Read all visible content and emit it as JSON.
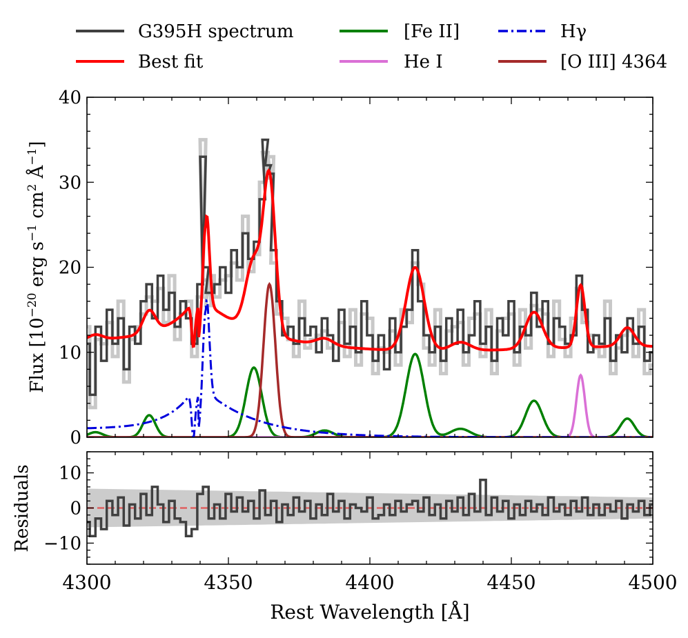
{
  "chart_data": [
    {
      "type": "line",
      "panel": "spectrum",
      "xlabel": "Rest Wavelength [Å]",
      "ylabel": "Flux [10^-20 erg s^-1 cm^2 Å^-1]",
      "ylabel_parts": [
        "Flux [10",
        "−20",
        " erg s",
        "−1",
        " cm",
        "2",
        " Å",
        "−1",
        "]"
      ],
      "xlim": [
        4300,
        4500
      ],
      "ylim": [
        0,
        40
      ],
      "xticks": [
        4300,
        4350,
        4400,
        4450,
        4500
      ],
      "xtick_labels": [
        "4300",
        "4350",
        "4400",
        "4450",
        "4500"
      ],
      "yticks": [
        0,
        10,
        20,
        30,
        40
      ],
      "ytick_labels": [
        "0",
        "10",
        "20",
        "30",
        "40"
      ],
      "legend_position": "top, above plot",
      "legend": [
        {
          "label": "G395H spectrum",
          "color": "#404040",
          "style": "solid"
        },
        {
          "label": "[Fe II]",
          "color": "#008000",
          "style": "solid"
        },
        {
          "label": "Hγ",
          "color": "#0000dd",
          "style": "dashdot"
        },
        {
          "label": "Best fit",
          "color": "#ff0000",
          "style": "solid"
        },
        {
          "label": "He I",
          "color": "#da70d6",
          "style": "solid"
        },
        {
          "label": "[O III] 4364",
          "color": "#a52a2a",
          "style": "solid"
        }
      ],
      "series": [
        {
          "name": "G395H spectrum",
          "color": "#404040",
          "style": "steps",
          "x": [
            4300,
            4302,
            4304,
            4306,
            4308,
            4310,
            4312,
            4314,
            4316,
            4318,
            4320,
            4322,
            4324,
            4326,
            4328,
            4330,
            4332,
            4334,
            4336,
            4338,
            4340,
            4341,
            4342,
            4343,
            4344,
            4346,
            4348,
            4350,
            4352,
            4354,
            4356,
            4358,
            4360,
            4362,
            4363,
            4364,
            4365,
            4366,
            4368,
            4370,
            4372,
            4374,
            4376,
            4378,
            4380,
            4382,
            4384,
            4386,
            4388,
            4390,
            4392,
            4394,
            4396,
            4398,
            4400,
            4402,
            4404,
            4406,
            4408,
            4410,
            4412,
            4414,
            4416,
            4418,
            4420,
            4422,
            4424,
            4426,
            4428,
            4430,
            4432,
            4434,
            4436,
            4438,
            4440,
            4442,
            4444,
            4446,
            4448,
            4450,
            4452,
            4454,
            4456,
            4458,
            4460,
            4462,
            4464,
            4466,
            4468,
            4470,
            4472,
            4474,
            4476,
            4478,
            4480,
            4482,
            4484,
            4486,
            4488,
            4490,
            4492,
            4494,
            4496,
            4498,
            4500
          ],
          "values": [
            11,
            5,
            13,
            9,
            15,
            11,
            14,
            8,
            13,
            11,
            16,
            18,
            14,
            19,
            15,
            17,
            13,
            16,
            14,
            11,
            18,
            33,
            20,
            17,
            17,
            18,
            20,
            17,
            22,
            20,
            24,
            21,
            23,
            28,
            35,
            32,
            31,
            22,
            16,
            12,
            13,
            11,
            14,
            12,
            13,
            10,
            14,
            12,
            9,
            15,
            11,
            13,
            10,
            16,
            12,
            9,
            12,
            8,
            14,
            10,
            13,
            15,
            22,
            16,
            12,
            10,
            13,
            9,
            14,
            11,
            15,
            10,
            12,
            16,
            11,
            13,
            9,
            14,
            12,
            16,
            10,
            13,
            12,
            17,
            13,
            16,
            11,
            14,
            13,
            11,
            12,
            19,
            15,
            10,
            12,
            11,
            14,
            9,
            12,
            10,
            14,
            11,
            13,
            9,
            10
          ]
        },
        {
          "name": "Best fit",
          "color": "#ff0000",
          "style": "solid",
          "derived": "sum of components + continuum"
        },
        {
          "name": "[Fe II]",
          "color": "#008000",
          "style": "solid",
          "components": [
            {
              "center": 4303,
              "amp": 0.6,
              "sigma": 2.5
            },
            {
              "center": 4322,
              "amp": 2.6,
              "sigma": 2.2
            },
            {
              "center": 4359,
              "amp": 8.2,
              "sigma": 2.8
            },
            {
              "center": 4384,
              "amp": 0.8,
              "sigma": 3
            },
            {
              "center": 4416,
              "amp": 9.8,
              "sigma": 3.2
            },
            {
              "center": 4432,
              "amp": 1.0,
              "sigma": 3.5
            },
            {
              "center": 4458,
              "amp": 4.3,
              "sigma": 3.0
            },
            {
              "center": 4491,
              "amp": 2.2,
              "sigma": 2.5
            }
          ]
        },
        {
          "name": "He I",
          "color": "#da70d6",
          "style": "solid",
          "components": [
            {
              "center": 4474.5,
              "amp": 7.3,
              "sigma": 1.5
            }
          ]
        },
        {
          "name": "Hγ",
          "color": "#0000dd",
          "style": "dashdot",
          "components": [
            {
              "center": 4342,
              "amp": 16,
              "profile": "broad asymmetric with absorption near 4337"
            }
          ]
        },
        {
          "name": "[O III] 4364",
          "color": "#a52a2a",
          "style": "solid",
          "components": [
            {
              "center": 4364.5,
              "amp": 18,
              "sigma": 2.1
            }
          ]
        }
      ]
    },
    {
      "type": "line",
      "panel": "residuals",
      "ylabel": "Residuals",
      "xlim": [
        4300,
        4500
      ],
      "ylim": [
        -16,
        16
      ],
      "yticks": [
        -10,
        0,
        10
      ],
      "ytick_labels": [
        "−10",
        "0",
        "10"
      ],
      "zero_line_color": "#e06060",
      "error_band_color": "#cccccc",
      "series": [
        {
          "name": "Residuals",
          "color": "#404040",
          "style": "steps",
          "x": [
            4300,
            4302,
            4304,
            4306,
            4308,
            4310,
            4312,
            4314,
            4316,
            4318,
            4320,
            4322,
            4324,
            4326,
            4328,
            4330,
            4332,
            4334,
            4336,
            4338,
            4340,
            4342,
            4344,
            4346,
            4348,
            4350,
            4352,
            4354,
            4356,
            4358,
            4360,
            4362,
            4364,
            4366,
            4368,
            4370,
            4372,
            4374,
            4376,
            4378,
            4380,
            4382,
            4384,
            4386,
            4388,
            4390,
            4392,
            4394,
            4396,
            4398,
            4400,
            4402,
            4404,
            4406,
            4408,
            4410,
            4412,
            4414,
            4416,
            4418,
            4420,
            4422,
            4424,
            4426,
            4428,
            4430,
            4432,
            4434,
            4436,
            4438,
            4440,
            4442,
            4444,
            4446,
            4448,
            4450,
            4452,
            4454,
            4456,
            4458,
            4460,
            4462,
            4464,
            4466,
            4468,
            4470,
            4472,
            4474,
            4476,
            4478,
            4480,
            4482,
            4484,
            4486,
            4488,
            4490,
            4492,
            4494,
            4496,
            4498,
            4500
          ],
          "values": [
            -4,
            -8,
            -3,
            -6,
            2,
            -2,
            3,
            -5,
            1,
            -3,
            4,
            -2,
            6,
            1,
            -4,
            2,
            -3,
            -4,
            -8,
            -6,
            4,
            6,
            -3,
            1,
            -3,
            4,
            -1,
            3,
            -1,
            2,
            -3,
            5,
            -2,
            2,
            -4,
            1,
            -2,
            3,
            -1,
            2,
            -3,
            1,
            -2,
            4,
            -1,
            2,
            -3,
            1,
            0,
            -1,
            3,
            -3,
            -2,
            1,
            -2,
            2,
            -1,
            1,
            2,
            -1,
            3,
            -2,
            1,
            -3,
            2,
            -1,
            3,
            -2,
            4,
            -1,
            8,
            -2,
            3,
            -1,
            2,
            -3,
            1,
            -2,
            2,
            -1,
            1,
            -2,
            3,
            -1,
            1,
            -2,
            2,
            -1,
            3,
            -2,
            1,
            -2,
            1,
            -1,
            2,
            -3,
            1,
            -1,
            2,
            -2,
            1
          ]
        }
      ]
    }
  ]
}
